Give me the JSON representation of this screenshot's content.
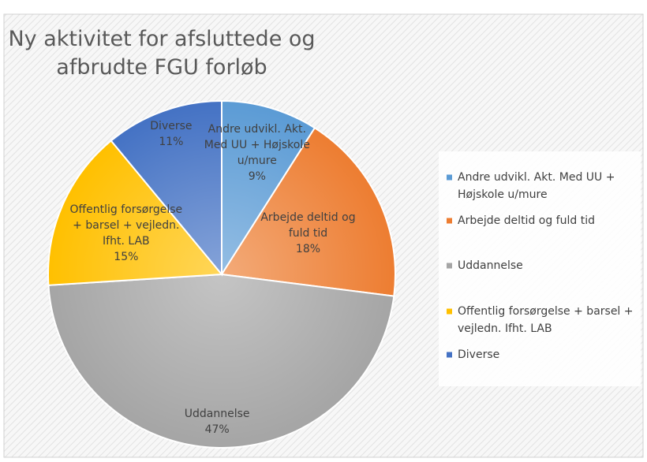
{
  "chart_data": {
    "type": "pie",
    "title": "Ny aktivitet for afsluttede og afbrudte FGU forløb",
    "categories": [
      "Andre udvikl. Akt. Med UU + Højskole u/mure",
      "Arbejde deltid og fuld tid",
      "Uddannelse",
      "Offentlig forsørgelse + barsel + vejledn. Ifht. LAB",
      "Diverse"
    ],
    "values": [
      9,
      18,
      47,
      15,
      11
    ],
    "value_labels": [
      "9%",
      "18%",
      "47%",
      "15%",
      "11%"
    ],
    "colors": [
      "#5b9bd5",
      "#ed7d31",
      "#a5a5a5",
      "#ffc000",
      "#4472c4"
    ],
    "legend": "right"
  }
}
